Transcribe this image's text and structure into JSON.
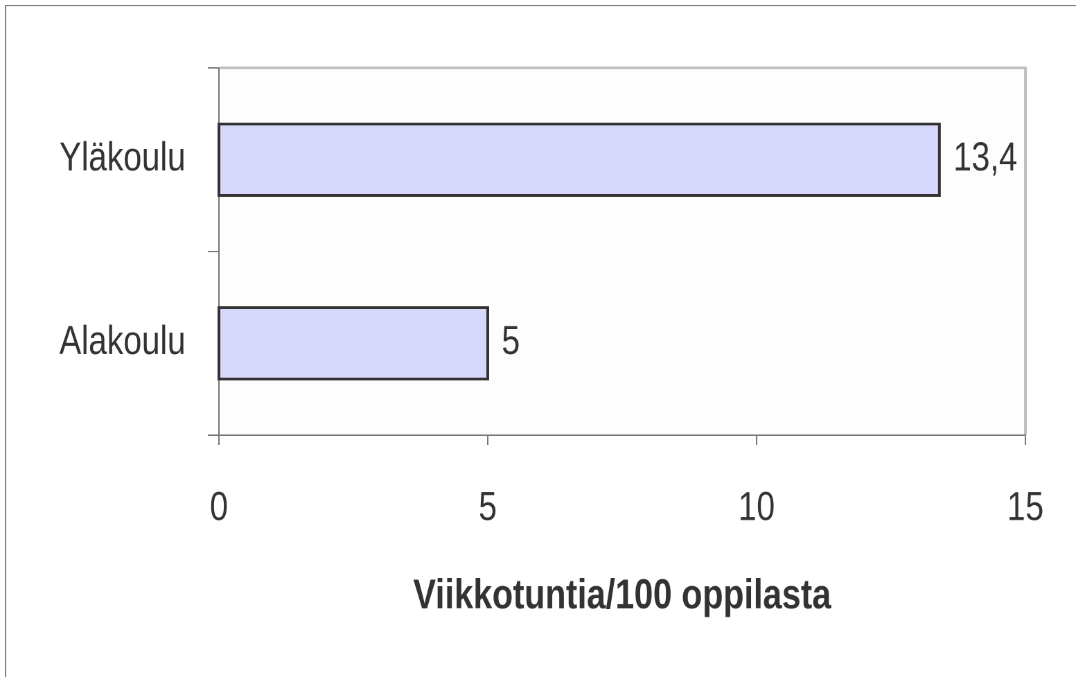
{
  "chart_data": {
    "type": "barh",
    "categories": [
      "Yläkoulu",
      "Alakoulu"
    ],
    "values": [
      13.4,
      5
    ],
    "value_labels": [
      "13,4",
      "5"
    ],
    "color": "#d7d7fb",
    "xlabel": "Viikkotuntia/100 oppilasta",
    "xlim": [
      0,
      15
    ],
    "xticks": [
      0,
      5,
      10,
      15
    ],
    "grid": false
  }
}
